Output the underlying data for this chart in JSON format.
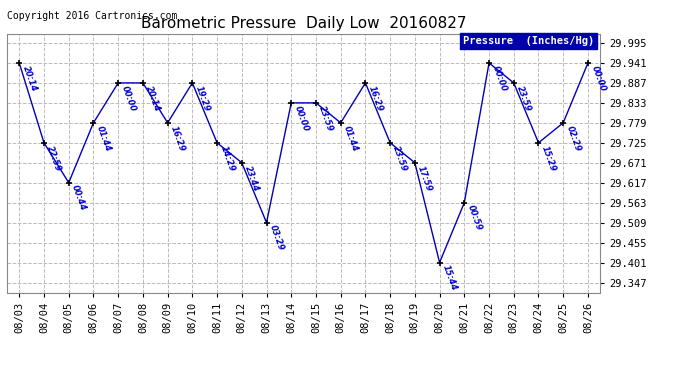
{
  "title": "Barometric Pressure  Daily Low  20160827",
  "copyright": "Copyright 2016 Cartronics.com",
  "legend_label": "Pressure  (Inches/Hg)",
  "x_labels": [
    "08/03",
    "08/04",
    "08/05",
    "08/06",
    "08/07",
    "08/08",
    "08/09",
    "08/10",
    "08/11",
    "08/12",
    "08/13",
    "08/14",
    "08/15",
    "08/16",
    "08/17",
    "08/18",
    "08/19",
    "08/20",
    "08/21",
    "08/22",
    "08/23",
    "08/24",
    "08/25",
    "08/26"
  ],
  "y_values": [
    29.941,
    29.725,
    29.617,
    29.779,
    29.887,
    29.887,
    29.779,
    29.887,
    29.725,
    29.671,
    29.509,
    29.833,
    29.833,
    29.779,
    29.887,
    29.725,
    29.671,
    29.401,
    29.563,
    29.941,
    29.887,
    29.725,
    29.779,
    29.941
  ],
  "point_labels": [
    "20:14",
    "22:59",
    "00:44",
    "01:44",
    "00:00",
    "20:14",
    "16:29",
    "19:29",
    "14:29",
    "23:44",
    "03:29",
    "00:00",
    "23:59",
    "01:44",
    "16:29",
    "23:59",
    "17:59",
    "15:44",
    "00:59",
    "00:00",
    "23:59",
    "15:29",
    "02:29",
    "00:00"
  ],
  "y_ticks": [
    29.347,
    29.401,
    29.455,
    29.509,
    29.563,
    29.617,
    29.671,
    29.725,
    29.779,
    29.833,
    29.887,
    29.941,
    29.995
  ],
  "ylim": [
    29.32,
    30.02
  ],
  "line_color": "#0000bb",
  "marker_color": "#000000",
  "grid_color": "#bbbbbb",
  "bg_color": "#ffffff",
  "title_color": "#000000",
  "copyright_color": "#000000",
  "label_color": "#0000cc",
  "legend_bg": "#0000aa",
  "legend_text_color": "#ffffff",
  "fig_width": 6.9,
  "fig_height": 3.75,
  "dpi": 100
}
